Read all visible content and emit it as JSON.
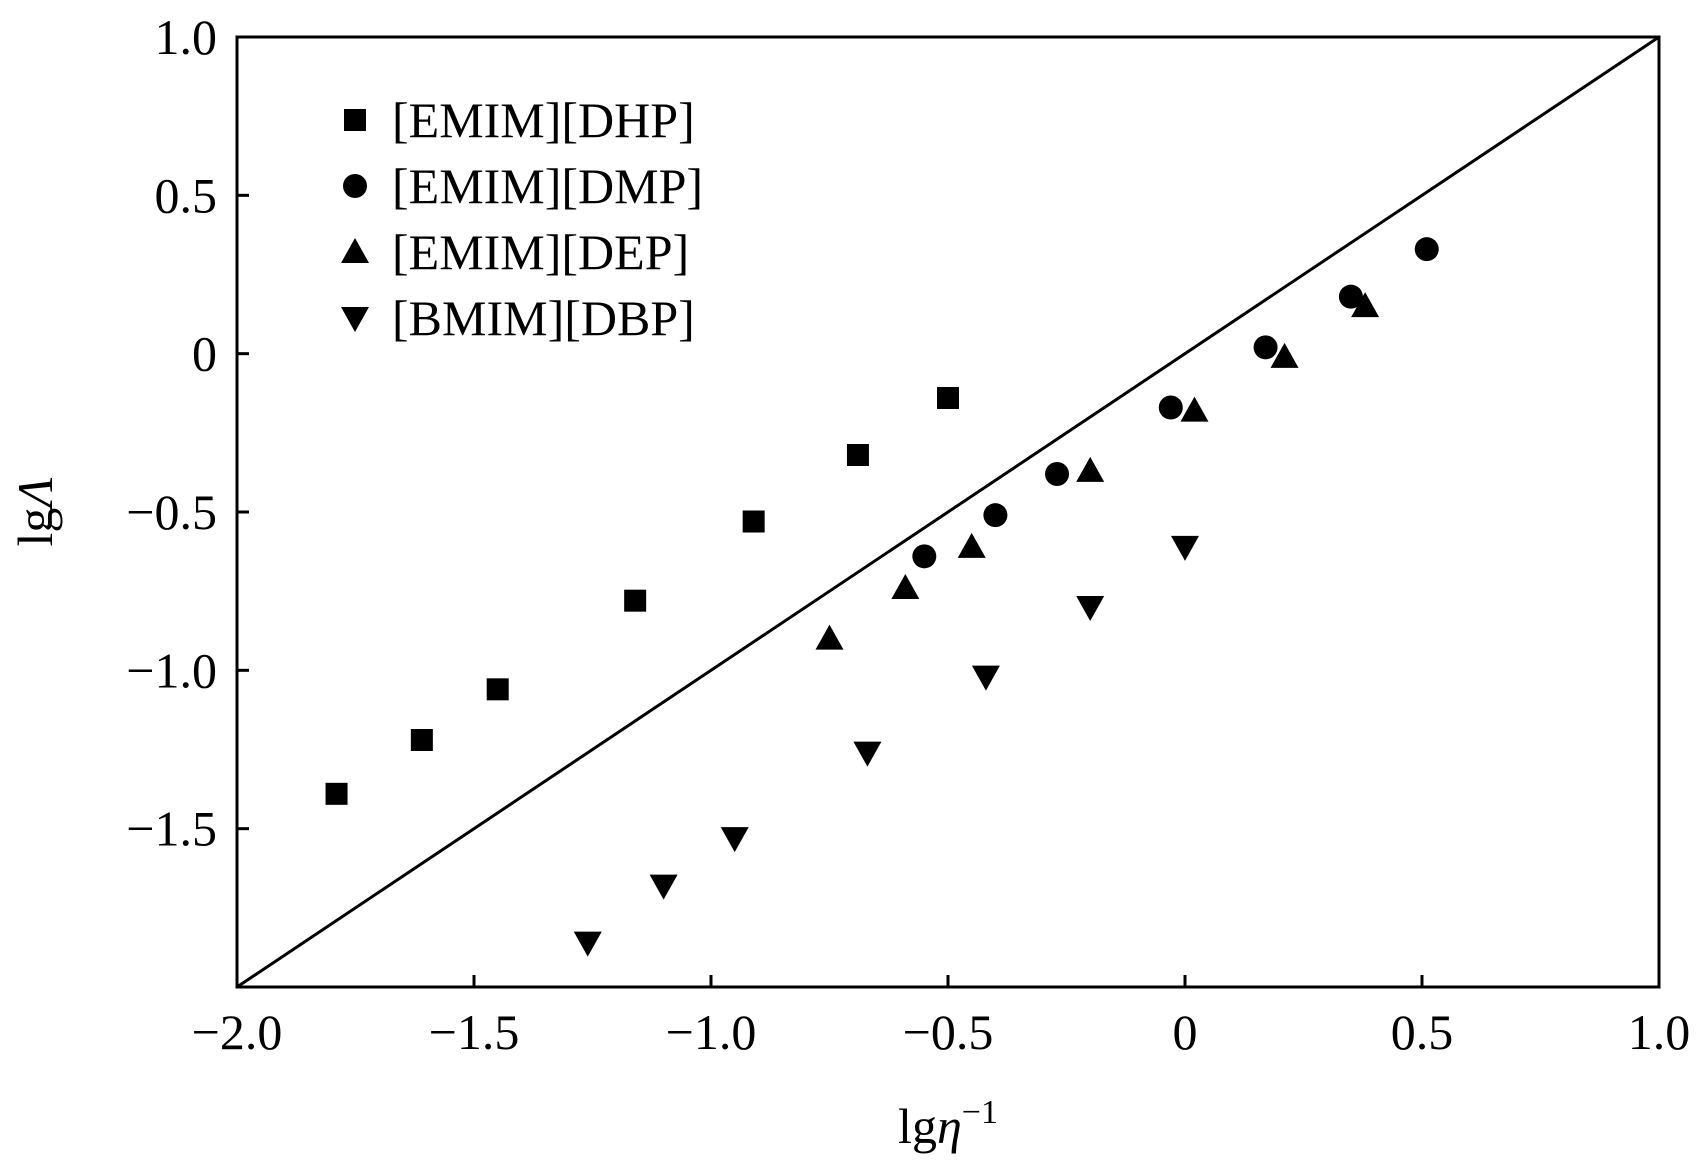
{
  "chart_data": {
    "type": "scatter",
    "title": "",
    "xlabel": {
      "base": "lg",
      "symbol": "η",
      "superscript": "−1"
    },
    "ylabel": {
      "base": "lg",
      "symbol": "Λ"
    },
    "xlim": [
      -2.0,
      1.0
    ],
    "ylim": [
      -2.0,
      1.0
    ],
    "xticks": [
      {
        "value": -2.0,
        "label": "−2.0"
      },
      {
        "value": -1.5,
        "label": "−1.5"
      },
      {
        "value": -1.0,
        "label": "−1.0"
      },
      {
        "value": -0.5,
        "label": "−0.5"
      },
      {
        "value": 0,
        "label": "0"
      },
      {
        "value": 0.5,
        "label": "0.5"
      },
      {
        "value": 1.0,
        "label": "1.0"
      }
    ],
    "yticks": [
      {
        "value": -1.5,
        "label": "−1.5"
      },
      {
        "value": -1.0,
        "label": "−1.0"
      },
      {
        "value": -0.5,
        "label": "−0.5"
      },
      {
        "value": 0,
        "label": "0"
      },
      {
        "value": 0.5,
        "label": "0.5"
      },
      {
        "value": 1.0,
        "label": "1.0"
      }
    ],
    "grid": false,
    "legend_position": "top-left",
    "reference_line": {
      "x": [
        -2.0,
        1.0
      ],
      "y": [
        -2.0,
        1.0
      ]
    },
    "series": [
      {
        "name": "[EMIM][DHP]",
        "marker": "square",
        "points": [
          {
            "x": -1.79,
            "y": -1.39
          },
          {
            "x": -1.61,
            "y": -1.22
          },
          {
            "x": -1.45,
            "y": -1.06
          },
          {
            "x": -1.16,
            "y": -0.78
          },
          {
            "x": -0.91,
            "y": -0.53
          },
          {
            "x": -0.69,
            "y": -0.32
          },
          {
            "x": -0.5,
            "y": -0.14
          }
        ]
      },
      {
        "name": "[EMIM][DMP]",
        "marker": "circle",
        "points": [
          {
            "x": -0.55,
            "y": -0.64
          },
          {
            "x": -0.4,
            "y": -0.51
          },
          {
            "x": -0.27,
            "y": -0.38
          },
          {
            "x": -0.03,
            "y": -0.17
          },
          {
            "x": 0.17,
            "y": 0.02
          },
          {
            "x": 0.35,
            "y": 0.18
          },
          {
            "x": 0.51,
            "y": 0.33
          }
        ]
      },
      {
        "name": "[EMIM][DEP]",
        "marker": "triangle-up",
        "points": [
          {
            "x": -0.75,
            "y": -0.9
          },
          {
            "x": -0.59,
            "y": -0.74
          },
          {
            "x": -0.45,
            "y": -0.61
          },
          {
            "x": -0.2,
            "y": -0.37
          },
          {
            "x": 0.02,
            "y": -0.18
          },
          {
            "x": 0.21,
            "y": -0.01
          },
          {
            "x": 0.38,
            "y": 0.15
          }
        ]
      },
      {
        "name": "[BMIM][DBP]",
        "marker": "triangle-down",
        "points": [
          {
            "x": -1.26,
            "y": -1.86
          },
          {
            "x": -1.1,
            "y": -1.68
          },
          {
            "x": -0.95,
            "y": -1.53
          },
          {
            "x": -0.67,
            "y": -1.26
          },
          {
            "x": -0.42,
            "y": -1.02
          },
          {
            "x": -0.2,
            "y": -0.8
          },
          {
            "x": 0.0,
            "y": -0.61
          }
        ]
      }
    ]
  }
}
